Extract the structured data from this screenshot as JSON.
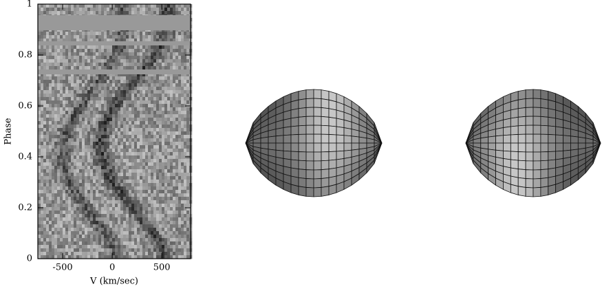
{
  "chart_data": {
    "type": "trailed-spectrum",
    "xlabel": "V (km/sec)",
    "ylabel": "Phase",
    "xlim": [
      -750,
      790
    ],
    "xticks": [
      -500,
      0,
      500
    ],
    "ylim": [
      0,
      1
    ],
    "yticks": [
      0,
      0.2,
      0.4,
      0.6,
      0.8,
      1
    ]
  }
}
